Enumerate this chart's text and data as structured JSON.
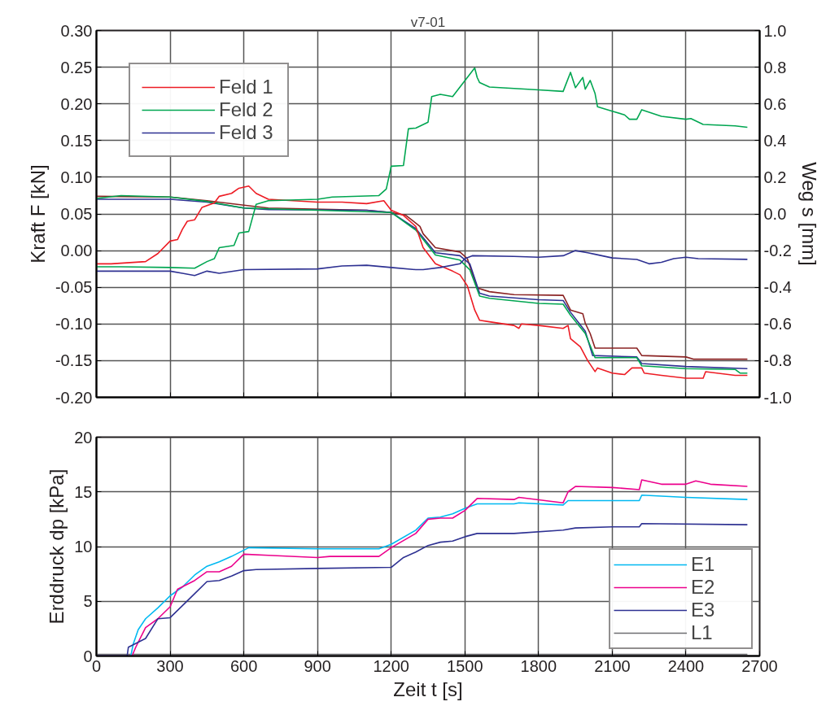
{
  "chart_data": [
    {
      "type": "line",
      "title": "v7-01",
      "ylabel": "Kraft F [kN]",
      "y2label": "Weg s [mm]",
      "xlim": [
        0,
        2700
      ],
      "xticks": [
        0,
        300,
        600,
        900,
        1200,
        1500,
        1800,
        2100,
        2400,
        2700
      ],
      "ylim": [
        -0.2,
        0.3
      ],
      "yticks": [
        {
          "value": -0.2,
          "label": "-0.20"
        },
        {
          "value": -0.15,
          "label": "-0.15"
        },
        {
          "value": -0.1,
          "label": "-0.10"
        },
        {
          "value": -0.05,
          "label": "-0.05"
        },
        {
          "value": 0,
          "label": "0.00"
        },
        {
          "value": 0.05,
          "label": "0.05"
        },
        {
          "value": 0.1,
          "label": "0.10"
        },
        {
          "value": 0.15,
          "label": "0.15"
        },
        {
          "value": 0.2,
          "label": "0.20"
        },
        {
          "value": 0.25,
          "label": "0.25"
        },
        {
          "value": 0.3,
          "label": "0.30"
        }
      ],
      "y2lim": [
        -1.0,
        1.0
      ],
      "y2ticks": [
        {
          "value": -1.0,
          "label": "-1.0"
        },
        {
          "value": -0.8,
          "label": "-0.8"
        },
        {
          "value": -0.6,
          "label": "-0.6"
        },
        {
          "value": -0.4,
          "label": "-0.4"
        },
        {
          "value": -0.2,
          "label": "-0.2"
        },
        {
          "value": 0,
          "label": "0.0"
        },
        {
          "value": 0.2,
          "label": "0.2"
        },
        {
          "value": 0.4,
          "label": "0.4"
        },
        {
          "value": 0.6,
          "label": "0.6"
        },
        {
          "value": 0.8,
          "label": "0.8"
        },
        {
          "value": 1.0,
          "label": "1.0"
        }
      ],
      "tick_labels": "y",
      "grid": true,
      "legend": "top left",
      "line_style": "solid",
      "marker": "none",
      "series": [
        {
          "color": "#8b2323",
          "axis": "y2",
          "x": [
            0,
            300,
            450,
            600,
            700,
            1100,
            1200,
            1260,
            1317,
            1330,
            1380,
            1480,
            1510,
            1550,
            1600,
            1700,
            1900,
            1930,
            1980,
            1990,
            2010,
            2030,
            2200,
            2220,
            2400,
            2430,
            2650
          ],
          "values": [
            0.096,
            0.092,
            0.072,
            0.048,
            0.032,
            0.02,
            0.008,
            -0.008,
            -0.068,
            -0.108,
            -0.184,
            -0.208,
            -0.244,
            -0.404,
            -0.424,
            -0.44,
            -0.444,
            -0.524,
            -0.544,
            -0.596,
            -0.652,
            -0.732,
            -0.732,
            -0.772,
            -0.78,
            -0.792,
            -0.792
          ]
        },
        {
          "color": "#2e3192",
          "axis": "y2",
          "x": [
            0,
            300,
            450,
            600,
            700,
            1100,
            1200,
            1300,
            1380,
            1480,
            1520,
            1560,
            1600,
            1800,
            1900,
            1930,
            1990,
            2020,
            2200,
            2220,
            2400,
            2650
          ],
          "values": [
            0.08,
            0.08,
            0.064,
            0.032,
            0.024,
            0.02,
            0.008,
            -0.08,
            -0.212,
            -0.228,
            -0.272,
            -0.432,
            -0.448,
            -0.468,
            -0.472,
            -0.536,
            -0.64,
            -0.772,
            -0.78,
            -0.816,
            -0.832,
            -0.844
          ]
        },
        {
          "color": "#00a651",
          "axis": "y2",
          "x": [
            0,
            100,
            300,
            450,
            600,
            1200,
            1300,
            1380,
            1480,
            1520,
            1560,
            1600,
            1800,
            1900,
            1930,
            1990,
            2030,
            2200,
            2220,
            2400,
            2600,
            2620,
            2650
          ],
          "values": [
            0.084,
            0.1,
            0.092,
            0.068,
            0.032,
            0.008,
            -0.088,
            -0.224,
            -0.252,
            -0.304,
            -0.448,
            -0.46,
            -0.488,
            -0.492,
            -0.552,
            -0.652,
            -0.784,
            -0.784,
            -0.828,
            -0.844,
            -0.848,
            -0.868,
            -0.868
          ]
        },
        {
          "name": "Feld 1",
          "color": "#ed1c24",
          "x": [
            0,
            60,
            200,
            250,
            300,
            330,
            350,
            370,
            400,
            430,
            480,
            500,
            550,
            580,
            620,
            650,
            700,
            900,
            1000,
            1100,
            1170,
            1200,
            1250,
            1300,
            1330,
            1380,
            1450,
            1480,
            1510,
            1540,
            1560,
            1600,
            1700,
            1720,
            1730,
            1800,
            1900,
            1920,
            1930,
            1970,
            2000,
            2030,
            2040,
            2100,
            2150,
            2180,
            2220,
            2230,
            2300,
            2400,
            2470,
            2480,
            2600,
            2650
          ],
          "values": [
            -0.018,
            -0.018,
            -0.015,
            -0.004,
            0.013,
            0.015,
            0.029,
            0.04,
            0.042,
            0.059,
            0.065,
            0.074,
            0.078,
            0.085,
            0.088,
            0.078,
            0.07,
            0.066,
            0.066,
            0.064,
            0.068,
            0.055,
            0.048,
            0.033,
            0.004,
            -0.018,
            -0.028,
            -0.033,
            -0.048,
            -0.081,
            -0.095,
            -0.097,
            -0.102,
            -0.106,
            -0.1,
            -0.102,
            -0.106,
            -0.102,
            -0.12,
            -0.131,
            -0.15,
            -0.165,
            -0.16,
            -0.167,
            -0.169,
            -0.16,
            -0.16,
            -0.167,
            -0.17,
            -0.174,
            -0.174,
            -0.165,
            -0.17,
            -0.17
          ]
        },
        {
          "name": "Feld 2",
          "color": "#00a651",
          "x": [
            0,
            100,
            300,
            400,
            450,
            480,
            500,
            560,
            580,
            620,
            650,
            700,
            900,
            960,
            1150,
            1180,
            1200,
            1250,
            1270,
            1300,
            1350,
            1365,
            1400,
            1450,
            1480,
            1510,
            1540,
            1550,
            1560,
            1600,
            1700,
            1800,
            1900,
            1930,
            1950,
            1980,
            1990,
            2010,
            2030,
            2040,
            2100,
            2150,
            2170,
            2200,
            2220,
            2300,
            2400,
            2420,
            2470,
            2600,
            2650
          ],
          "values": [
            -0.022,
            -0.022,
            -0.023,
            -0.024,
            -0.015,
            -0.011,
            0.004,
            0.007,
            0.024,
            0.026,
            0.063,
            0.068,
            0.07,
            0.073,
            0.075,
            0.084,
            0.115,
            0.116,
            0.166,
            0.167,
            0.175,
            0.21,
            0.213,
            0.21,
            0.223,
            0.236,
            0.249,
            0.236,
            0.229,
            0.223,
            0.221,
            0.219,
            0.217,
            0.243,
            0.222,
            0.236,
            0.22,
            0.232,
            0.214,
            0.196,
            0.19,
            0.185,
            0.179,
            0.179,
            0.192,
            0.183,
            0.179,
            0.18,
            0.172,
            0.17,
            0.168
          ]
        },
        {
          "name": "Feld 3",
          "color": "#2e3192",
          "x": [
            0,
            300,
            350,
            400,
            450,
            500,
            600,
            900,
            1000,
            1100,
            1200,
            1300,
            1330,
            1400,
            1480,
            1500,
            1530,
            1700,
            1800,
            1900,
            1950,
            2000,
            2030,
            2100,
            2200,
            2250,
            2300,
            2350,
            2400,
            2450,
            2650
          ],
          "values": [
            -0.028,
            -0.028,
            -0.031,
            -0.034,
            -0.028,
            -0.031,
            -0.026,
            -0.025,
            -0.021,
            -0.02,
            -0.023,
            -0.026,
            -0.026,
            -0.023,
            -0.018,
            -0.011,
            -0.007,
            -0.008,
            -0.009,
            -0.007,
            0.0,
            -0.003,
            -0.005,
            -0.01,
            -0.012,
            -0.018,
            -0.016,
            -0.011,
            -0.009,
            -0.011,
            -0.012
          ]
        }
      ]
    },
    {
      "type": "line",
      "xlabel": "Zeit t [s]",
      "ylabel": "Erddruck dp [kPa]",
      "xlim": [
        0,
        2700
      ],
      "xticks": [
        0,
        300,
        600,
        900,
        1200,
        1500,
        1800,
        2100,
        2400,
        2700
      ],
      "ylim": [
        0,
        20
      ],
      "yticks": [
        0,
        5,
        10,
        15,
        20
      ],
      "grid": true,
      "legend": "bottom right",
      "line_style": "solid",
      "marker": "none",
      "series": [
        {
          "name": "L1",
          "color": "#6d6e71",
          "x": [
            0,
            2650
          ],
          "values": [
            0.15,
            0.15
          ]
        },
        {
          "name": "E1",
          "color": "#00b9f1",
          "x": [
            0,
            140,
            150,
            170,
            200,
            250,
            300,
            350,
            400,
            450,
            500,
            550,
            620,
            900,
            1150,
            1200,
            1300,
            1350,
            1400,
            1450,
            1500,
            1550,
            1700,
            1720,
            1900,
            1920,
            2100,
            2210,
            2220,
            2400,
            2650
          ],
          "values": [
            0,
            0,
            1.1,
            2.4,
            3.4,
            4.4,
            5.5,
            6.3,
            7.4,
            8.2,
            8.6,
            9.1,
            9.9,
            9.8,
            9.8,
            10.2,
            11.5,
            12.6,
            12.7,
            13.0,
            13.5,
            13.9,
            13.9,
            14.0,
            13.8,
            14.2,
            14.2,
            14.2,
            14.7,
            14.5,
            14.3
          ]
        },
        {
          "name": "E2",
          "color": "#ec008c",
          "x": [
            0,
            145,
            160,
            200,
            250,
            300,
            330,
            400,
            450,
            500,
            550,
            600,
            700,
            900,
            950,
            1150,
            1200,
            1300,
            1350,
            1400,
            1450,
            1500,
            1550,
            1700,
            1720,
            1900,
            1920,
            1950,
            2100,
            2210,
            2220,
            2300,
            2400,
            2440,
            2500,
            2650
          ],
          "values": [
            0,
            0,
            0.8,
            2.6,
            3.4,
            4.5,
            6.1,
            6.9,
            7.7,
            7.7,
            8.2,
            9.3,
            9.2,
            9.0,
            9.1,
            9.1,
            9.9,
            11.2,
            12.5,
            12.6,
            12.6,
            13.3,
            14.4,
            14.3,
            14.5,
            14.0,
            15.0,
            15.5,
            15.4,
            15.2,
            16.1,
            15.7,
            15.7,
            16.0,
            15.7,
            15.5
          ]
        },
        {
          "name": "E3",
          "color": "#2e3192",
          "x": [
            0,
            125,
            130,
            200,
            250,
            300,
            350,
            400,
            450,
            500,
            550,
            600,
            650,
            900,
            1200,
            1250,
            1300,
            1350,
            1400,
            1450,
            1500,
            1550,
            1700,
            1900,
            1950,
            2100,
            2210,
            2220,
            2650
          ],
          "values": [
            0,
            0,
            0.8,
            1.6,
            3.4,
            3.5,
            4.6,
            5.7,
            6.8,
            6.9,
            7.3,
            7.8,
            7.9,
            8.0,
            8.1,
            9.0,
            9.5,
            10.1,
            10.4,
            10.5,
            10.9,
            11.2,
            11.2,
            11.5,
            11.7,
            11.8,
            11.8,
            12.1,
            12.0
          ]
        }
      ]
    }
  ]
}
